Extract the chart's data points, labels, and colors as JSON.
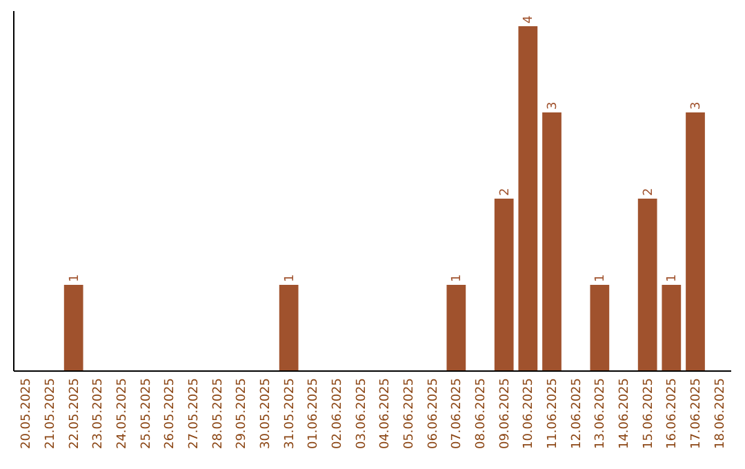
{
  "chart_data": {
    "type": "bar",
    "categories": [
      "20.05.2025",
      "21.05.2025",
      "22.05.2025",
      "23.05.2025",
      "24.05.2025",
      "25.05.2025",
      "26.05.2025",
      "27.05.2025",
      "28.05.2025",
      "29.05.2025",
      "30.05.2025",
      "31.05.2025",
      "01.06.2025",
      "02.06.2025",
      "03.06.2025",
      "04.06.2025",
      "05.06.2025",
      "06.06.2025",
      "07.06.2025",
      "08.06.2025",
      "09.06.2025",
      "10.06.2025",
      "11.06.2025",
      "12.06.2025",
      "13.06.2025",
      "14.06.2025",
      "15.06.2025",
      "16.06.2025",
      "17.06.2025",
      "18.06.2025"
    ],
    "values": [
      null,
      null,
      1,
      null,
      null,
      null,
      null,
      null,
      null,
      null,
      null,
      1,
      null,
      null,
      null,
      null,
      null,
      null,
      1,
      null,
      2,
      4,
      3,
      null,
      1,
      null,
      2,
      1,
      3,
      null
    ],
    "color": "#a0522d",
    "data_labels": true
  }
}
